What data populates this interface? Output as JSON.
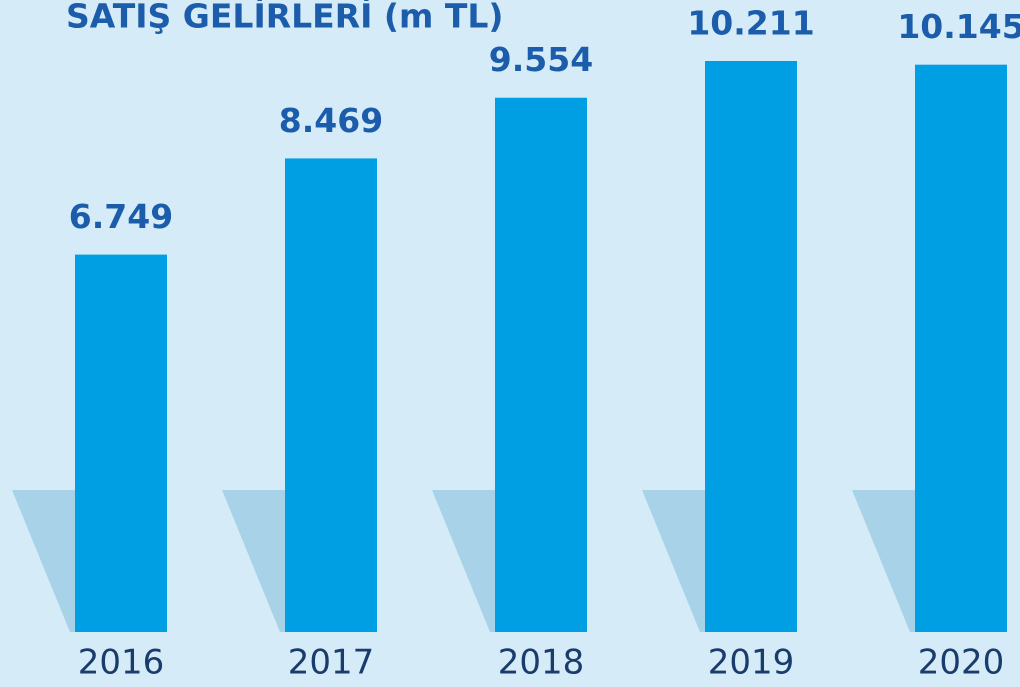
{
  "chart_data": {
    "type": "bar",
    "title": "SATIŞ GELİRLERİ (m TL)",
    "categories": [
      "2016",
      "2017",
      "2018",
      "2019",
      "2020"
    ],
    "values": [
      6749,
      8469,
      9554,
      10211,
      10145
    ],
    "value_labels": [
      "6.749",
      "8.469",
      "9.554",
      "10.211",
      "10.145"
    ],
    "color": "#009fe3"
  }
}
